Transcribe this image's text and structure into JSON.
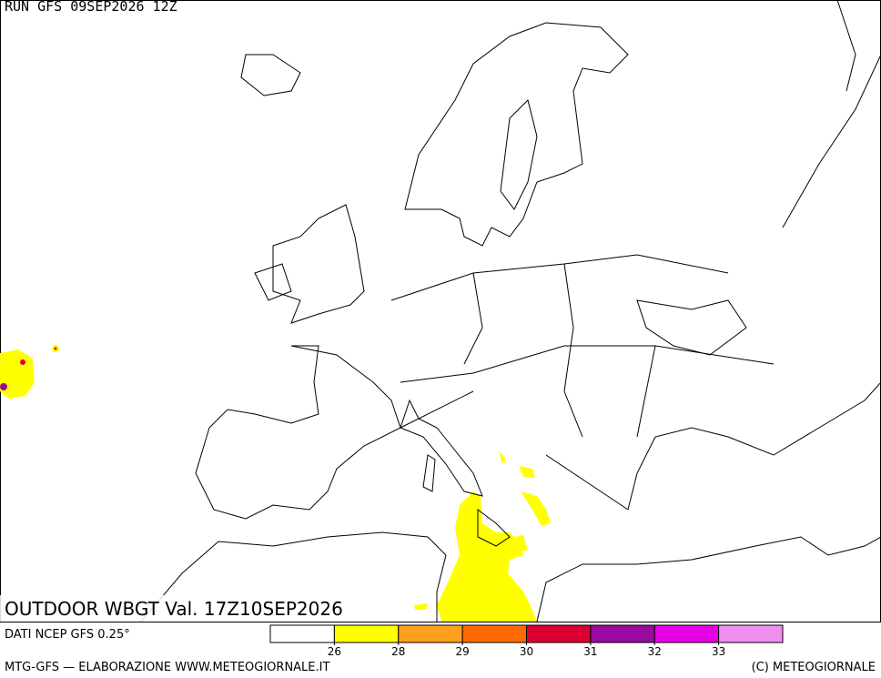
{
  "header": {
    "run": "RUN GFS 09SEP2026 12Z"
  },
  "map": {
    "title": "OUTDOOR WBGT Val. 17Z10SEP2026"
  },
  "footer": {
    "source": "DATI NCEP GFS 0.25°",
    "credit": "MTG-GFS — ELABORAZIONE WWW.METEOGIORNALE.IT",
    "copyright": "(C) METEOGIORNALE"
  },
  "colorbar": {
    "colors": [
      "#ffffff",
      "#ffff00",
      "#ff9f1f",
      "#ff6a00",
      "#dc0032",
      "#9a0aa0",
      "#e600e6",
      "#f08ef0"
    ],
    "ticks": [
      26,
      28,
      29,
      30,
      31,
      32,
      33
    ]
  }
}
